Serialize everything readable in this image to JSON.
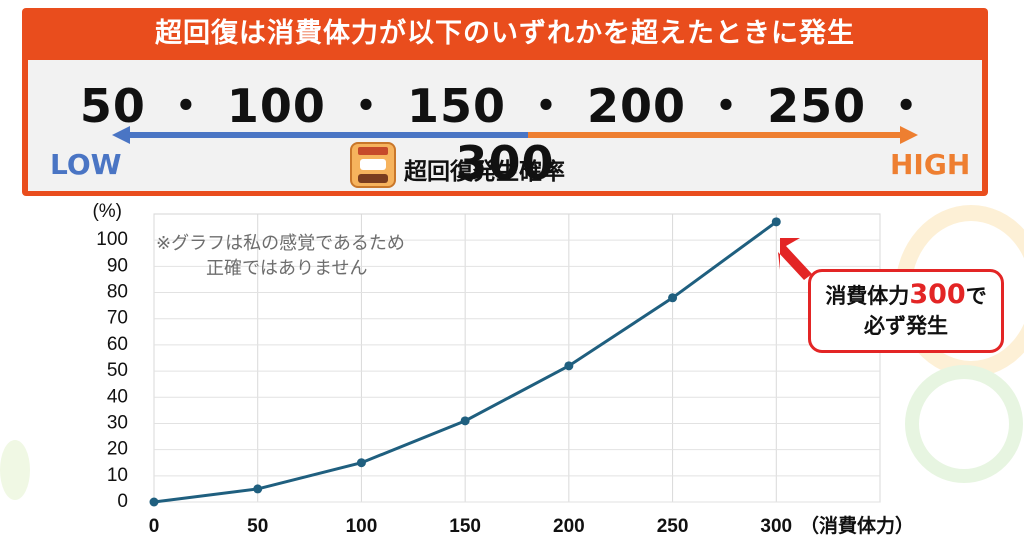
{
  "banner": {
    "title": "超回復は消費体力が以下のいずれかを超えたときに発生",
    "values_line": "50 ・ 100 ・ 150 ・ 200 ・ 250 ・ 300",
    "low_label": "LOW",
    "high_label": "HIGH",
    "probability_label": "超回復発生確率",
    "icon": "super-recovery-icon",
    "colors": {
      "banner": "#e94d1d",
      "low": "#4a75c4",
      "high": "#ee7f31"
    }
  },
  "chart_data": {
    "type": "line",
    "x": [
      0,
      50,
      100,
      150,
      200,
      250,
      300
    ],
    "series": [
      {
        "values": [
          0,
          5,
          15,
          31,
          52,
          78,
          107
        ]
      }
    ],
    "x_tick_labels": [
      "0",
      "50",
      "100",
      "150",
      "200",
      "250",
      "300"
    ],
    "y_ticks": [
      0,
      10,
      20,
      30,
      40,
      50,
      60,
      70,
      80,
      90,
      100
    ],
    "y_unit_label": "(%)",
    "x_unit_label": "（消費体力）",
    "xlim": [
      0,
      350
    ],
    "ylim": [
      0,
      110
    ],
    "grid": true,
    "line_color": "#1f5f7f",
    "note": [
      "※グラフは私の感覚であるため",
      "正確ではありません"
    ]
  },
  "callout": {
    "prefix": "消費体力",
    "number": "300",
    "suffix": "で",
    "line2": "必ず発生",
    "color": "#e32525"
  }
}
